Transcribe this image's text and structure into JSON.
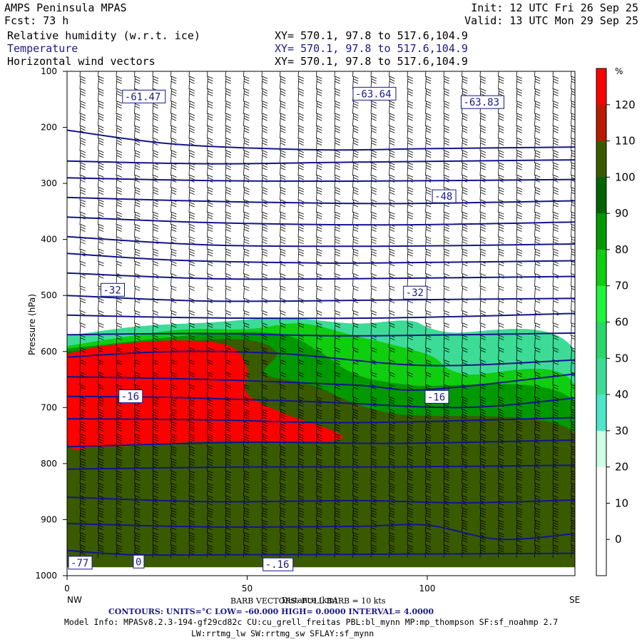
{
  "header": {
    "model": "AMPS Peninsula MPAS",
    "init": "Init: 12 UTC Fri 26 Sep 25",
    "fcst": "Fcst:   73 h",
    "valid": "Valid: 13 UTC Mon 29 Sep 25",
    "fields": [
      {
        "name": "Relative humidity (w.r.t. ice)",
        "xy": "XY= 570.1, 97.8 to 517.6,104.9"
      },
      {
        "name": "Temperature",
        "xy": "XY= 570.1, 97.8 to 517.6,104.9"
      },
      {
        "name": "Horizontal wind vectors",
        "xy": "XY= 570.1, 97.8 to 517.6,104.9"
      }
    ]
  },
  "footer": {
    "barb": "BARB VECTORS: FULL BARB = 10 kts",
    "contours": "CONTOURS:  UNITS=°C  LOW= -60.000      HIGH=  0.0000      INTERVAL=    4.0000",
    "model_info_1": "Model Info: MPASv8.2.3-194-gf29cd82c CU:cu_grell_freitas PBL:bl_mynn MP:mp_thompson SF:sf_noahmp 2.7",
    "model_info_2": "LW:rrtmg_lw SW:rrtmg_sw SFLAY:sf_mynn"
  },
  "chart_data": {
    "type": "heatmap",
    "ylabel": "Pressure (hPa)",
    "xlabel": "Distance (km)",
    "x_end_labels": [
      "NW",
      "SE"
    ],
    "xlim": [
      0,
      141
    ],
    "ylim": [
      1000,
      100
    ],
    "x_ticks": [
      0,
      50,
      100
    ],
    "y_ticks": [
      100,
      200,
      300,
      400,
      500,
      600,
      700,
      800,
      900,
      1000
    ],
    "colorbar": {
      "unit": "%",
      "levels": [
        0,
        10,
        20,
        30,
        40,
        50,
        60,
        70,
        80,
        90,
        100,
        110,
        120
      ],
      "colors": [
        "#ffffff",
        "#ffffff",
        "#ffffff",
        "#ccffe6",
        "#4ee6c8",
        "#3cdc96",
        "#2ad76a",
        "#1ff53c",
        "#0fcd0f",
        "#009900",
        "#006400",
        "#3a5a00",
        "#b91a00",
        "#ff0000"
      ]
    },
    "rh_regions": [
      {
        "level": 50,
        "color": "#3cdc96",
        "outline": [
          [
            0,
            572
          ],
          [
            20,
            555
          ],
          [
            40,
            548
          ],
          [
            60,
            540
          ],
          [
            80,
            550
          ],
          [
            95,
            545
          ],
          [
            105,
            565
          ],
          [
            141,
            600
          ],
          [
            141,
            985
          ],
          [
            0,
            985
          ]
        ]
      },
      {
        "level": 80,
        "color": "#0fcd0f",
        "outline": [
          [
            0,
            590
          ],
          [
            30,
            562
          ],
          [
            50,
            560
          ],
          [
            65,
            550
          ],
          [
            80,
            572
          ],
          [
            100,
            605
          ],
          [
            110,
            640
          ],
          [
            141,
            660
          ],
          [
            141,
            985
          ],
          [
            0,
            985
          ]
        ]
      },
      {
        "level": 90,
        "color": "#009900",
        "outline": [
          [
            0,
            595
          ],
          [
            40,
            568
          ],
          [
            60,
            570
          ],
          [
            70,
            600
          ],
          [
            80,
            640
          ],
          [
            95,
            660
          ],
          [
            141,
            690
          ],
          [
            141,
            985
          ],
          [
            0,
            985
          ]
        ]
      },
      {
        "level": 100,
        "color": "#3a5a00",
        "outline": [
          [
            0,
            600
          ],
          [
            45,
            578
          ],
          [
            58,
            600
          ],
          [
            55,
            640
          ],
          [
            68,
            660
          ],
          [
            90,
            710
          ],
          [
            141,
            745
          ],
          [
            141,
            985
          ],
          [
            0,
            985
          ]
        ]
      },
      {
        "level": 110,
        "color": "#ff0000",
        "outline": [
          [
            0,
            605
          ],
          [
            10,
            590
          ],
          [
            30,
            580
          ],
          [
            45,
            590
          ],
          [
            50,
            630
          ],
          [
            50,
            675
          ],
          [
            60,
            710
          ],
          [
            75,
            745
          ],
          [
            72,
            760
          ],
          [
            40,
            760
          ],
          [
            10,
            770
          ],
          [
            0,
            760
          ]
        ]
      }
    ],
    "temperature_contours": [
      {
        "points": [
          [
            0,
            205
          ],
          [
            30,
            230
          ],
          [
            70,
            240
          ],
          [
            100,
            238
          ],
          [
            141,
            235
          ]
        ]
      },
      {
        "points": [
          [
            0,
            260
          ],
          [
            40,
            265
          ],
          [
            80,
            262
          ],
          [
            141,
            258
          ]
        ]
      },
      {
        "points": [
          [
            0,
            290
          ],
          [
            40,
            295
          ],
          [
            80,
            296
          ],
          [
            141,
            293
          ]
        ]
      },
      {
        "points": [
          [
            0,
            325
          ],
          [
            40,
            332
          ],
          [
            90,
            336
          ],
          [
            141,
            331
          ]
        ]
      },
      {
        "points": [
          [
            0,
            360
          ],
          [
            40,
            370
          ],
          [
            90,
            374
          ],
          [
            141,
            369
          ]
        ]
      },
      {
        "points": [
          [
            0,
            395
          ],
          [
            40,
            410
          ],
          [
            90,
            412
          ],
          [
            141,
            408
          ]
        ]
      },
      {
        "points": [
          [
            0,
            425
          ],
          [
            30,
            437
          ],
          [
            70,
            442
          ],
          [
            100,
            441
          ],
          [
            141,
            438
          ]
        ]
      },
      {
        "points": [
          [
            0,
            460
          ],
          [
            40,
            470
          ],
          [
            80,
            470
          ],
          [
            141,
            466
          ]
        ]
      },
      {
        "points": [
          [
            0,
            500
          ],
          [
            40,
            510
          ],
          [
            90,
            508
          ],
          [
            141,
            505
          ]
        ]
      },
      {
        "points": [
          [
            0,
            535
          ],
          [
            40,
            540
          ],
          [
            90,
            540
          ],
          [
            141,
            532
          ]
        ]
      },
      {
        "points": [
          [
            0,
            570
          ],
          [
            40,
            568
          ],
          [
            80,
            572
          ],
          [
            141,
            567
          ]
        ]
      },
      {
        "points": [
          [
            0,
            610
          ],
          [
            30,
            600
          ],
          [
            60,
            604
          ],
          [
            100,
            625
          ],
          [
            141,
            615
          ]
        ]
      },
      {
        "points": [
          [
            0,
            645
          ],
          [
            40,
            650
          ],
          [
            80,
            660
          ],
          [
            100,
            668
          ],
          [
            141,
            640
          ]
        ]
      },
      {
        "points": [
          [
            0,
            680
          ],
          [
            30,
            682
          ],
          [
            70,
            690
          ],
          [
            110,
            700
          ],
          [
            141,
            683
          ]
        ]
      },
      {
        "points": [
          [
            0,
            720
          ],
          [
            40,
            722
          ],
          [
            80,
            727
          ],
          [
            141,
            718
          ]
        ]
      },
      {
        "points": [
          [
            0,
            770
          ],
          [
            50,
            762
          ],
          [
            90,
            764
          ],
          [
            141,
            758
          ]
        ]
      },
      {
        "points": [
          [
            0,
            810
          ],
          [
            50,
            806
          ],
          [
            90,
            806
          ],
          [
            141,
            803
          ]
        ]
      },
      {
        "points": [
          [
            0,
            860
          ],
          [
            40,
            868
          ],
          [
            80,
            866
          ],
          [
            110,
            870
          ],
          [
            141,
            865
          ]
        ]
      },
      {
        "points": [
          [
            0,
            907
          ],
          [
            40,
            913
          ],
          [
            80,
            912
          ],
          [
            100,
            910
          ],
          [
            120,
            935
          ],
          [
            141,
            925
          ]
        ]
      },
      {
        "points": [
          [
            0,
            955
          ],
          [
            10,
            960
          ],
          [
            20,
            963
          ],
          [
            40,
            963
          ],
          [
            80,
            962
          ],
          [
            141,
            960
          ]
        ]
      }
    ],
    "contour_labels": [
      {
        "text": "-61.47",
        "x": 16,
        "y": 150
      },
      {
        "text": "-63.64",
        "x": 80,
        "y": 145
      },
      {
        "text": "-63.83",
        "x": 110,
        "y": 160
      },
      {
        "text": "-48",
        "x": 102,
        "y": 328
      },
      {
        "text": "-32",
        "x": 10,
        "y": 495
      },
      {
        "text": "-32",
        "x": 94,
        "y": 500
      },
      {
        "text": "-16",
        "x": 15,
        "y": 685
      },
      {
        "text": "-16",
        "x": 100,
        "y": 686
      },
      {
        "text": "0",
        "x": 19,
        "y": 980
      },
      {
        "text": "-.16",
        "x": 55,
        "y": 985
      },
      {
        "text": "-77",
        "x": 1,
        "y": 982
      }
    ]
  }
}
